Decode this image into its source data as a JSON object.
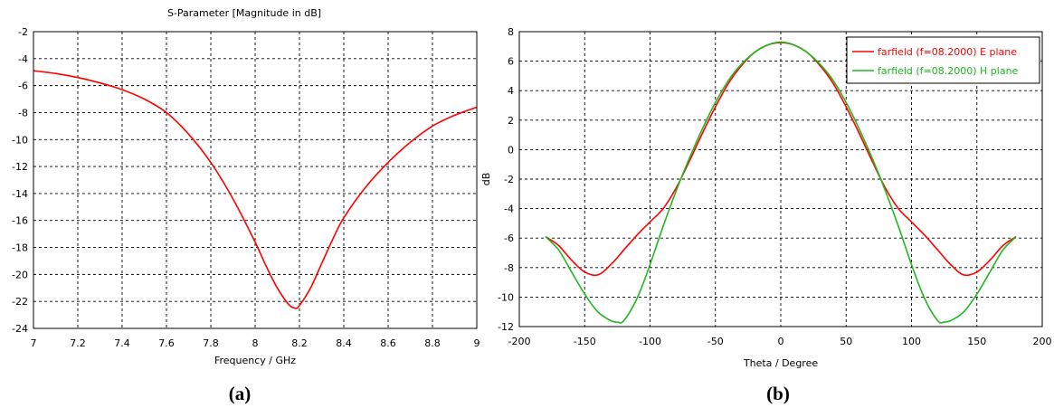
{
  "chart_data": [
    {
      "type": "line",
      "title": "S-Parameter [Magnitude in dB]",
      "xlabel": "Frequency / GHz",
      "ylabel": "",
      "panel_label": "(a)",
      "xlim": [
        7,
        9
      ],
      "ylim": [
        -24,
        -2
      ],
      "xticks": [
        "7",
        "7.2",
        "7.4",
        "7.6",
        "7.8",
        "8",
        "8.2",
        "8.4",
        "8.6",
        "8.8",
        "9"
      ],
      "xtick_values": [
        7,
        7.2,
        7.4,
        7.6,
        7.8,
        8,
        8.2,
        8.4,
        8.6,
        8.8,
        9
      ],
      "yticks": [
        "-2",
        "-4",
        "-6",
        "-8",
        "-10",
        "-12",
        "-14",
        "-16",
        "-18",
        "-20",
        "-22",
        "-24"
      ],
      "ytick_values": [
        -2,
        -4,
        -6,
        -8,
        -10,
        -12,
        -14,
        -16,
        -18,
        -20,
        -22,
        -24
      ],
      "grid": true,
      "series": [
        {
          "color": "#ff0000",
          "x": [
            7.0,
            7.1,
            7.2,
            7.3,
            7.4,
            7.5,
            7.6,
            7.7,
            7.8,
            7.9,
            8.0,
            8.05,
            8.1,
            8.15,
            8.18,
            8.2,
            8.25,
            8.3,
            8.35,
            8.4,
            8.5,
            8.6,
            8.7,
            8.8,
            8.9,
            9.0
          ],
          "y": [
            -4.9,
            -5.1,
            -5.4,
            -5.8,
            -6.3,
            -7.0,
            -8.0,
            -9.6,
            -11.7,
            -14.4,
            -17.6,
            -19.4,
            -21.0,
            -22.2,
            -22.5,
            -22.3,
            -21.0,
            -19.2,
            -17.4,
            -15.8,
            -13.5,
            -11.7,
            -10.2,
            -9.0,
            -8.2,
            -7.6
          ]
        }
      ]
    },
    {
      "type": "line",
      "title": "",
      "xlabel": "Theta / Degree",
      "ylabel": "dB",
      "panel_label": "(b)",
      "xlim": [
        -200,
        200
      ],
      "ylim": [
        -12,
        8
      ],
      "xticks": [
        "-200",
        "-150",
        "-100",
        "-50",
        "0",
        "50",
        "100",
        "150",
        "200"
      ],
      "xtick_values": [
        -200,
        -150,
        -100,
        -50,
        0,
        50,
        100,
        150,
        200
      ],
      "yticks": [
        "8",
        "6",
        "4",
        "2",
        "0",
        "-2",
        "-4",
        "-6",
        "-8",
        "-10",
        "-12"
      ],
      "ytick_values": [
        8,
        6,
        4,
        2,
        0,
        -2,
        -4,
        -6,
        -8,
        -10,
        -12
      ],
      "grid": true,
      "legend_position": "top-right",
      "series": [
        {
          "name": "farfield (f=08.2000)  E plane",
          "color": "#ff0000",
          "x": [
            -180,
            -170,
            -160,
            -150,
            -140,
            -130,
            -120,
            -110,
            -100,
            -90,
            -80,
            -70,
            -60,
            -50,
            -40,
            -30,
            -20,
            -10,
            0,
            10,
            20,
            30,
            40,
            50,
            60,
            70,
            80,
            90,
            100,
            110,
            120,
            130,
            140,
            150,
            160,
            170,
            180
          ],
          "y": [
            -5.9,
            -6.5,
            -7.5,
            -8.3,
            -8.5,
            -7.8,
            -6.8,
            -5.8,
            -4.9,
            -4.0,
            -2.6,
            -0.8,
            1.1,
            2.9,
            4.5,
            5.7,
            6.6,
            7.1,
            7.25,
            7.1,
            6.6,
            5.7,
            4.5,
            2.9,
            1.1,
            -0.8,
            -2.6,
            -4.0,
            -4.9,
            -5.8,
            -6.8,
            -7.8,
            -8.5,
            -8.3,
            -7.5,
            -6.5,
            -5.9
          ]
        },
        {
          "name": "farfield (f=08.2000)  H plane",
          "color": "#1fb81f",
          "x": [
            -180,
            -170,
            -160,
            -150,
            -140,
            -130,
            -125,
            -120,
            -110,
            -100,
            -90,
            -80,
            -70,
            -60,
            -50,
            -40,
            -30,
            -20,
            -10,
            0,
            10,
            20,
            30,
            40,
            50,
            60,
            70,
            80,
            90,
            100,
            110,
            120,
            125,
            130,
            140,
            150,
            160,
            170,
            180
          ],
          "y": [
            -5.9,
            -6.8,
            -8.3,
            -9.8,
            -11.0,
            -11.6,
            -11.7,
            -11.6,
            -10.1,
            -7.8,
            -5.2,
            -2.8,
            -0.6,
            1.4,
            3.2,
            4.7,
            5.8,
            6.6,
            7.1,
            7.3,
            7.1,
            6.6,
            5.8,
            4.7,
            3.2,
            1.4,
            -0.6,
            -2.8,
            -5.2,
            -7.8,
            -10.1,
            -11.6,
            -11.7,
            -11.6,
            -11.0,
            -9.8,
            -8.3,
            -6.8,
            -5.9
          ]
        }
      ]
    }
  ]
}
